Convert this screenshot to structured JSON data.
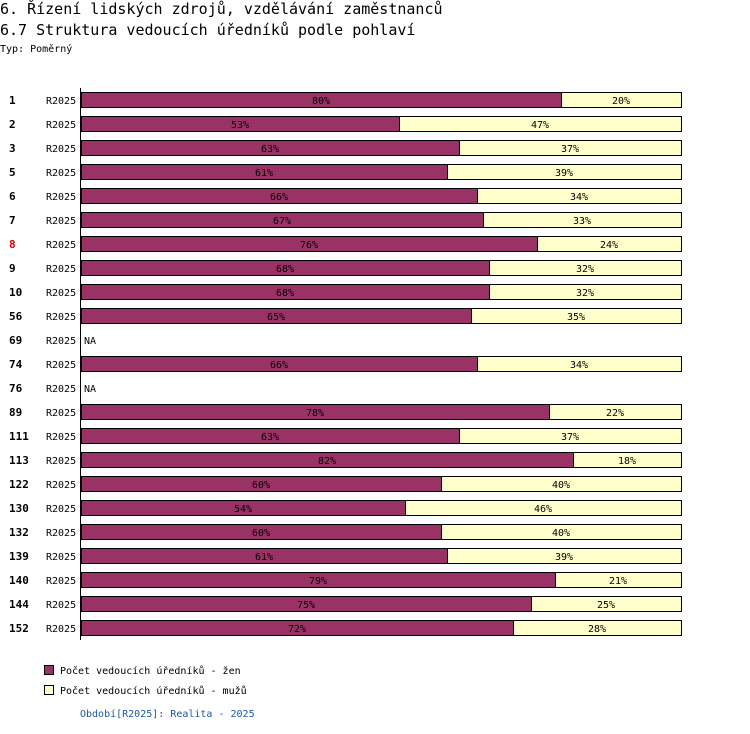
{
  "header": {
    "title": "6. Řízení lidských zdrojů, vzdělávání zaměstnanců",
    "subtitle": "6.7 Struktura vedoucích úředníků podle pohlaví",
    "type_label": "Typ: Poměrný"
  },
  "chart_data": {
    "type": "bar",
    "orientation": "horizontal",
    "stacked": true,
    "normalized": true,
    "period_label": "R2025",
    "na_label": "NA",
    "categories": [
      "1",
      "2",
      "3",
      "5",
      "6",
      "7",
      "8",
      "9",
      "10",
      "56",
      "69",
      "74",
      "76",
      "89",
      "111",
      "113",
      "122",
      "130",
      "132",
      "139",
      "140",
      "144",
      "152"
    ],
    "highlight_categories": [
      "8"
    ],
    "series": [
      {
        "name": "Počet vedoucích úředníků - žen",
        "color": "#993366",
        "values": [
          80,
          53,
          63,
          61,
          66,
          67,
          76,
          68,
          68,
          65,
          null,
          66,
          null,
          78,
          63,
          82,
          60,
          54,
          60,
          61,
          79,
          75,
          72
        ]
      },
      {
        "name": "Počet vedoucích úředníků - mužů",
        "color": "#ffffcc",
        "values": [
          20,
          47,
          37,
          39,
          34,
          33,
          24,
          32,
          32,
          35,
          null,
          34,
          null,
          22,
          37,
          18,
          40,
          46,
          40,
          39,
          21,
          25,
          28
        ]
      }
    ],
    "xlim": [
      0,
      100
    ],
    "unit": "%"
  },
  "legend": {
    "items": [
      {
        "label": "Počet vedoucích úředníků - žen",
        "color": "#993366"
      },
      {
        "label": "Počet vedoucích úředníků - mužů",
        "color": "#ffffcc"
      }
    ]
  },
  "footer": {
    "period": "Období[R2025]: Realita - 2025"
  }
}
